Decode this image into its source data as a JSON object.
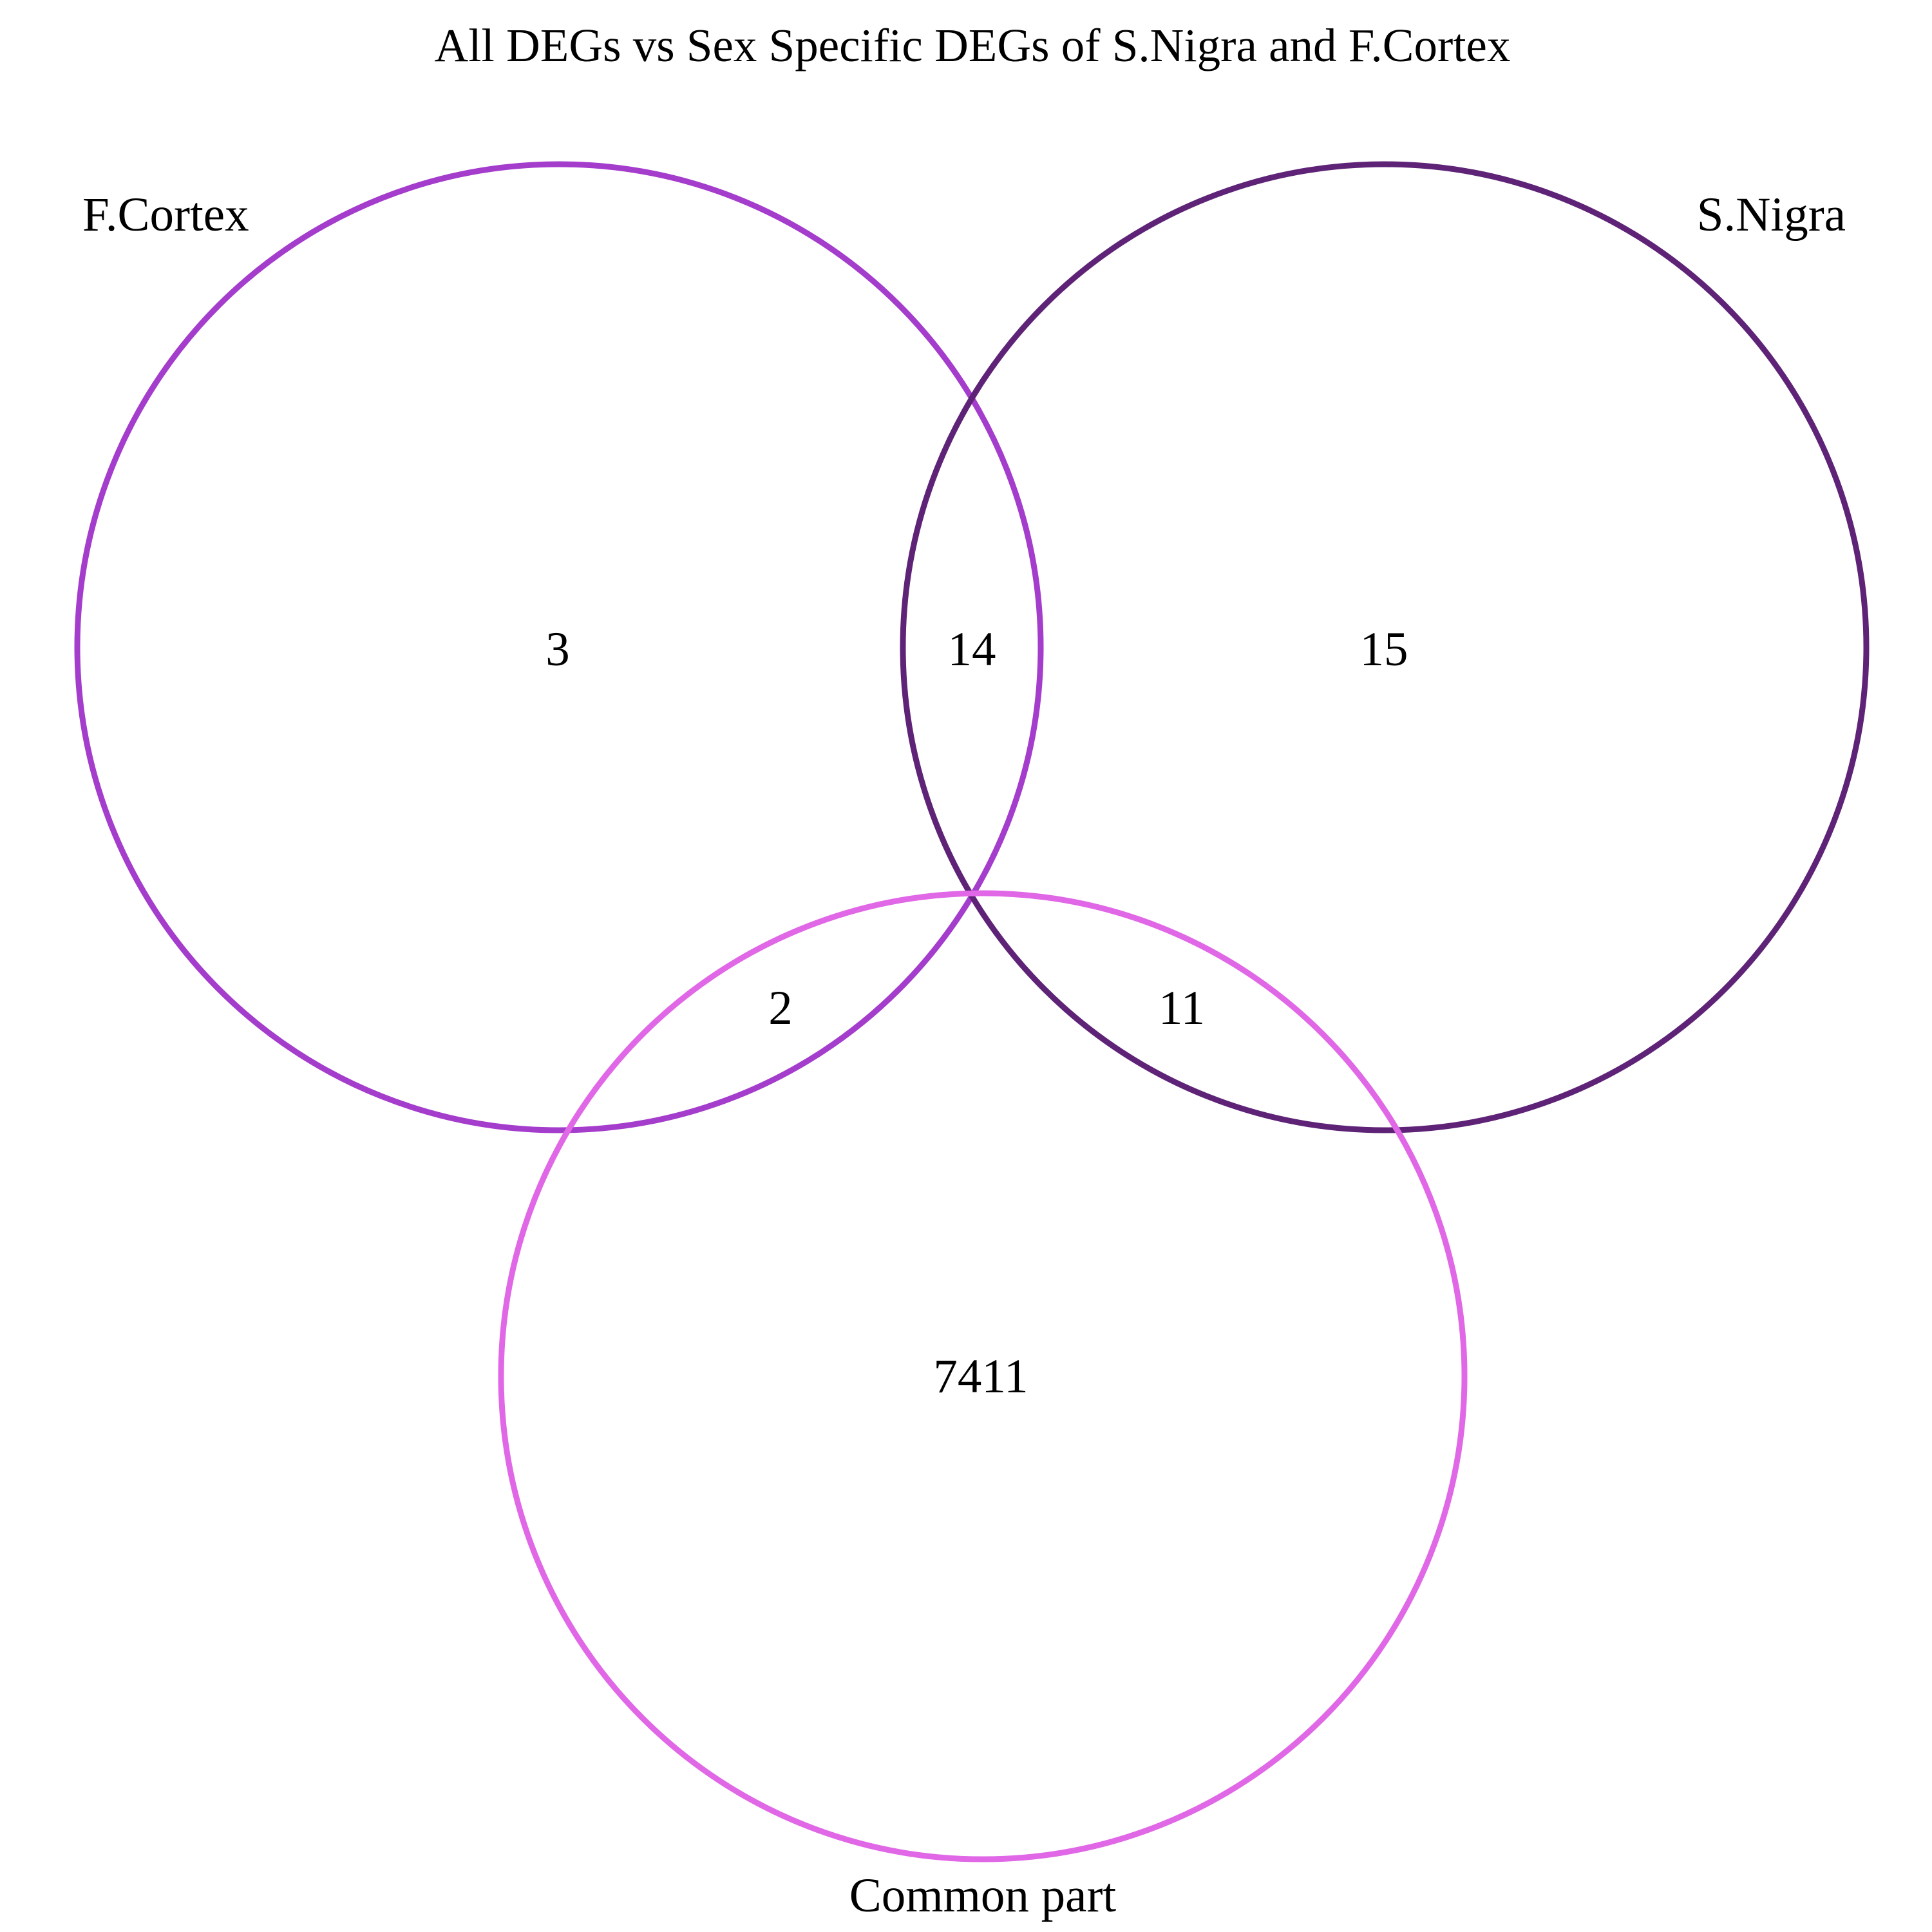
{
  "title": "All DEGs vs Sex Specific DEGs of S.Nigra and F.Cortex",
  "colors": {
    "f_cortex": "#a43ccc",
    "s_nigra": "#5e2377",
    "common_part": "#e067e6"
  },
  "sets": [
    {
      "key": "f_cortex",
      "label": "F.Cortex",
      "color": "#a43ccc"
    },
    {
      "key": "s_nigra",
      "label": "S.Nigra",
      "color": "#5e2377"
    },
    {
      "key": "common_part",
      "label": "Common part",
      "color": "#e067e6"
    }
  ],
  "regions": {
    "f_cortex_only": "3",
    "f_cortex_and_s_nigra": "14",
    "s_nigra_only": "15",
    "f_cortex_and_common_part": "2",
    "s_nigra_and_common_part": "11",
    "common_part_only": "7411"
  }
}
